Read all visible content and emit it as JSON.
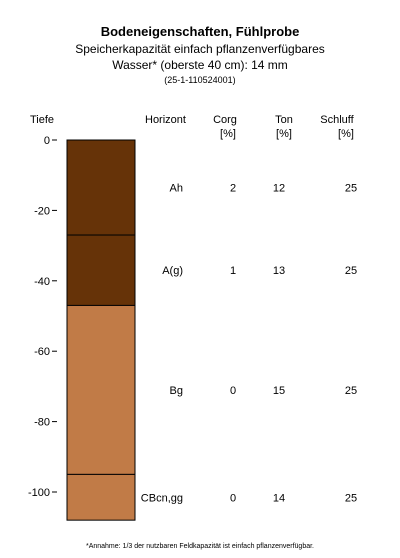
{
  "header": {
    "title": "Bodeneigenschaften, Fühlprobe",
    "subtitle_line1": "Speicherkapazität einfach pflanzenverfügbares",
    "subtitle_line2": "Wasser* (oberste 40 cm): 14 mm",
    "sample_id": "(25-1-110524001)"
  },
  "columns": {
    "depth": "Tiefe",
    "horizon": "Horizont",
    "corg": "Corg",
    "corg_unit": "[%]",
    "clay": "Ton",
    "clay_unit": "[%]",
    "silt": "Schluff",
    "silt_unit": "[%]"
  },
  "chart_data": {
    "type": "soil-profile",
    "ylabel": "Tiefe",
    "ylim": [
      -108,
      0
    ],
    "yticks": [
      0,
      -20,
      -40,
      -60,
      -80,
      -100
    ],
    "layers": [
      {
        "horizon": "Ah",
        "top": 0,
        "bottom": -27,
        "color": "#663308",
        "corg": "2",
        "clay": "12",
        "silt": "25"
      },
      {
        "horizon": "A(g)",
        "top": -27,
        "bottom": -47,
        "color": "#663308",
        "corg": "1",
        "clay": "13",
        "silt": "25"
      },
      {
        "horizon": "Bg",
        "top": -47,
        "bottom": -95,
        "color": "#C17B47",
        "corg": "0",
        "clay": "15",
        "silt": "25"
      },
      {
        "horizon": "CBcn,gg",
        "top": -95,
        "bottom": -108,
        "color": "#C17B47",
        "corg": "0",
        "clay": "14",
        "silt": "25"
      }
    ]
  },
  "footnote": "*Annahme: 1/3 der nutzbaren Feldkapazität ist einfach pflanzenverfügbar."
}
